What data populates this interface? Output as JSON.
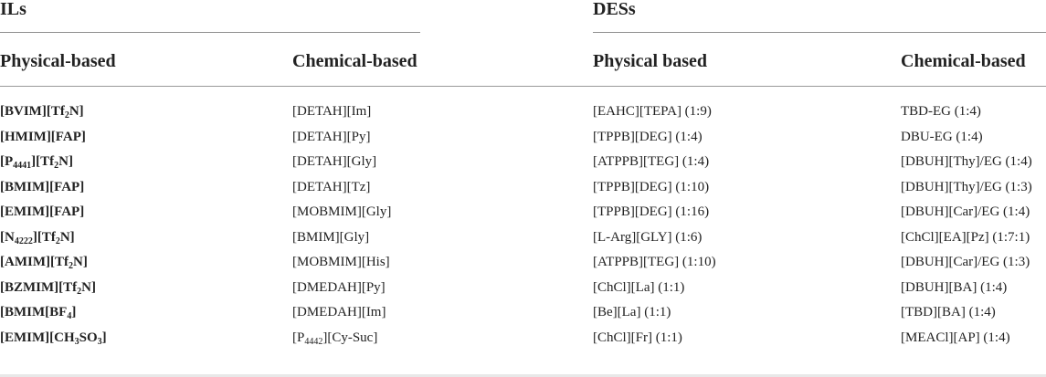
{
  "sections": {
    "ils": "ILs",
    "dess": "DESs"
  },
  "headers": {
    "il_physical": "Physical-based",
    "il_chemical": "Chemical-based",
    "des_physical": "Physical based",
    "des_chemical": "Chemical-based"
  },
  "rows": [
    {
      "il_physical": [
        {
          "t": "[BVIM][Tf"
        },
        {
          "t": "2",
          "sub": true
        },
        {
          "t": "N]"
        }
      ],
      "il_chemical": [
        {
          "t": "[DETAH][Im]"
        }
      ],
      "des_physical": [
        {
          "t": "[EAHC][TEPA] (1:9)"
        }
      ],
      "des_chemical": [
        {
          "t": "TBD-EG (1:4)"
        }
      ]
    },
    {
      "il_physical": [
        {
          "t": "[HMIM][FAP]"
        }
      ],
      "il_chemical": [
        {
          "t": "[DETAH][Py]"
        }
      ],
      "des_physical": [
        {
          "t": "[TPPB][DEG] (1:4)"
        }
      ],
      "des_chemical": [
        {
          "t": "DBU-EG (1:4)"
        }
      ]
    },
    {
      "il_physical": [
        {
          "t": "[P"
        },
        {
          "t": "4441",
          "sub": true
        },
        {
          "t": "][Tf"
        },
        {
          "t": "2",
          "sub": true
        },
        {
          "t": "N]"
        }
      ],
      "il_chemical": [
        {
          "t": "[DETAH][Gly]"
        }
      ],
      "des_physical": [
        {
          "t": "[ATPPB][TEG] (1:4)"
        }
      ],
      "des_chemical": [
        {
          "t": "[DBUH][Thy]/EG (1:4)"
        }
      ]
    },
    {
      "il_physical": [
        {
          "t": "[BMIM][FAP]"
        }
      ],
      "il_chemical": [
        {
          "t": "[DETAH][Tz]"
        }
      ],
      "des_physical": [
        {
          "t": "[TPPB][DEG] (1:10)"
        }
      ],
      "des_chemical": [
        {
          "t": "[DBUH][Thy]/EG (1:3)"
        }
      ]
    },
    {
      "il_physical": [
        {
          "t": "[EMIM][FAP]"
        }
      ],
      "il_chemical": [
        {
          "t": "[MOBMIM][Gly]"
        }
      ],
      "des_physical": [
        {
          "t": "[TPPB][DEG] (1:16)"
        }
      ],
      "des_chemical": [
        {
          "t": "[DBUH][Car]/EG (1:4)"
        }
      ]
    },
    {
      "il_physical": [
        {
          "t": "[N"
        },
        {
          "t": "4222",
          "sub": true
        },
        {
          "t": "][Tf"
        },
        {
          "t": "2",
          "sub": true
        },
        {
          "t": "N]"
        }
      ],
      "il_chemical": [
        {
          "t": "[BMIM][Gly]"
        }
      ],
      "des_physical": [
        {
          "t": "[L-Arg][GLY] (1:6)"
        }
      ],
      "des_chemical": [
        {
          "t": "[ChCl][EA][Pz] (1:7:1)"
        }
      ]
    },
    {
      "il_physical": [
        {
          "t": "[AMIM][Tf"
        },
        {
          "t": "2",
          "sub": true
        },
        {
          "t": "N]"
        }
      ],
      "il_chemical": [
        {
          "t": "[MOBMIM][His]"
        }
      ],
      "des_physical": [
        {
          "t": "[ATPPB][TEG] (1:10)"
        }
      ],
      "des_chemical": [
        {
          "t": "[DBUH][Car]/EG (1:3)"
        }
      ]
    },
    {
      "il_physical": [
        {
          "t": "[BZMIM][Tf"
        },
        {
          "t": "2",
          "sub": true
        },
        {
          "t": "N]"
        }
      ],
      "il_chemical": [
        {
          "t": "[DMEDAH][Py]"
        }
      ],
      "des_physical": [
        {
          "t": "[ChCl][La] (1:1)"
        }
      ],
      "des_chemical": [
        {
          "t": "[DBUH][BA] (1:4)"
        }
      ]
    },
    {
      "il_physical": [
        {
          "t": "[BMIM[BF"
        },
        {
          "t": "4",
          "sub": true
        },
        {
          "t": "]"
        }
      ],
      "il_chemical": [
        {
          "t": "[DMEDAH][Im]"
        }
      ],
      "des_physical": [
        {
          "t": "[Be][La] (1:1)"
        }
      ],
      "des_chemical": [
        {
          "t": "[TBD][BA] (1:4)"
        }
      ]
    },
    {
      "il_physical": [
        {
          "t": "[EMIM][CH"
        },
        {
          "t": "3",
          "sub": true
        },
        {
          "t": "SO"
        },
        {
          "t": "3",
          "sub": true
        },
        {
          "t": "]"
        }
      ],
      "il_chemical": [
        {
          "t": "[P"
        },
        {
          "t": "4442",
          "sub": true
        },
        {
          "t": "][Cy-Suc]"
        }
      ],
      "des_physical": [
        {
          "t": "[ChCl][Fr] (1:1)"
        }
      ],
      "des_chemical": [
        {
          "t": "[MEACl][AP] (1:4)"
        }
      ]
    }
  ]
}
